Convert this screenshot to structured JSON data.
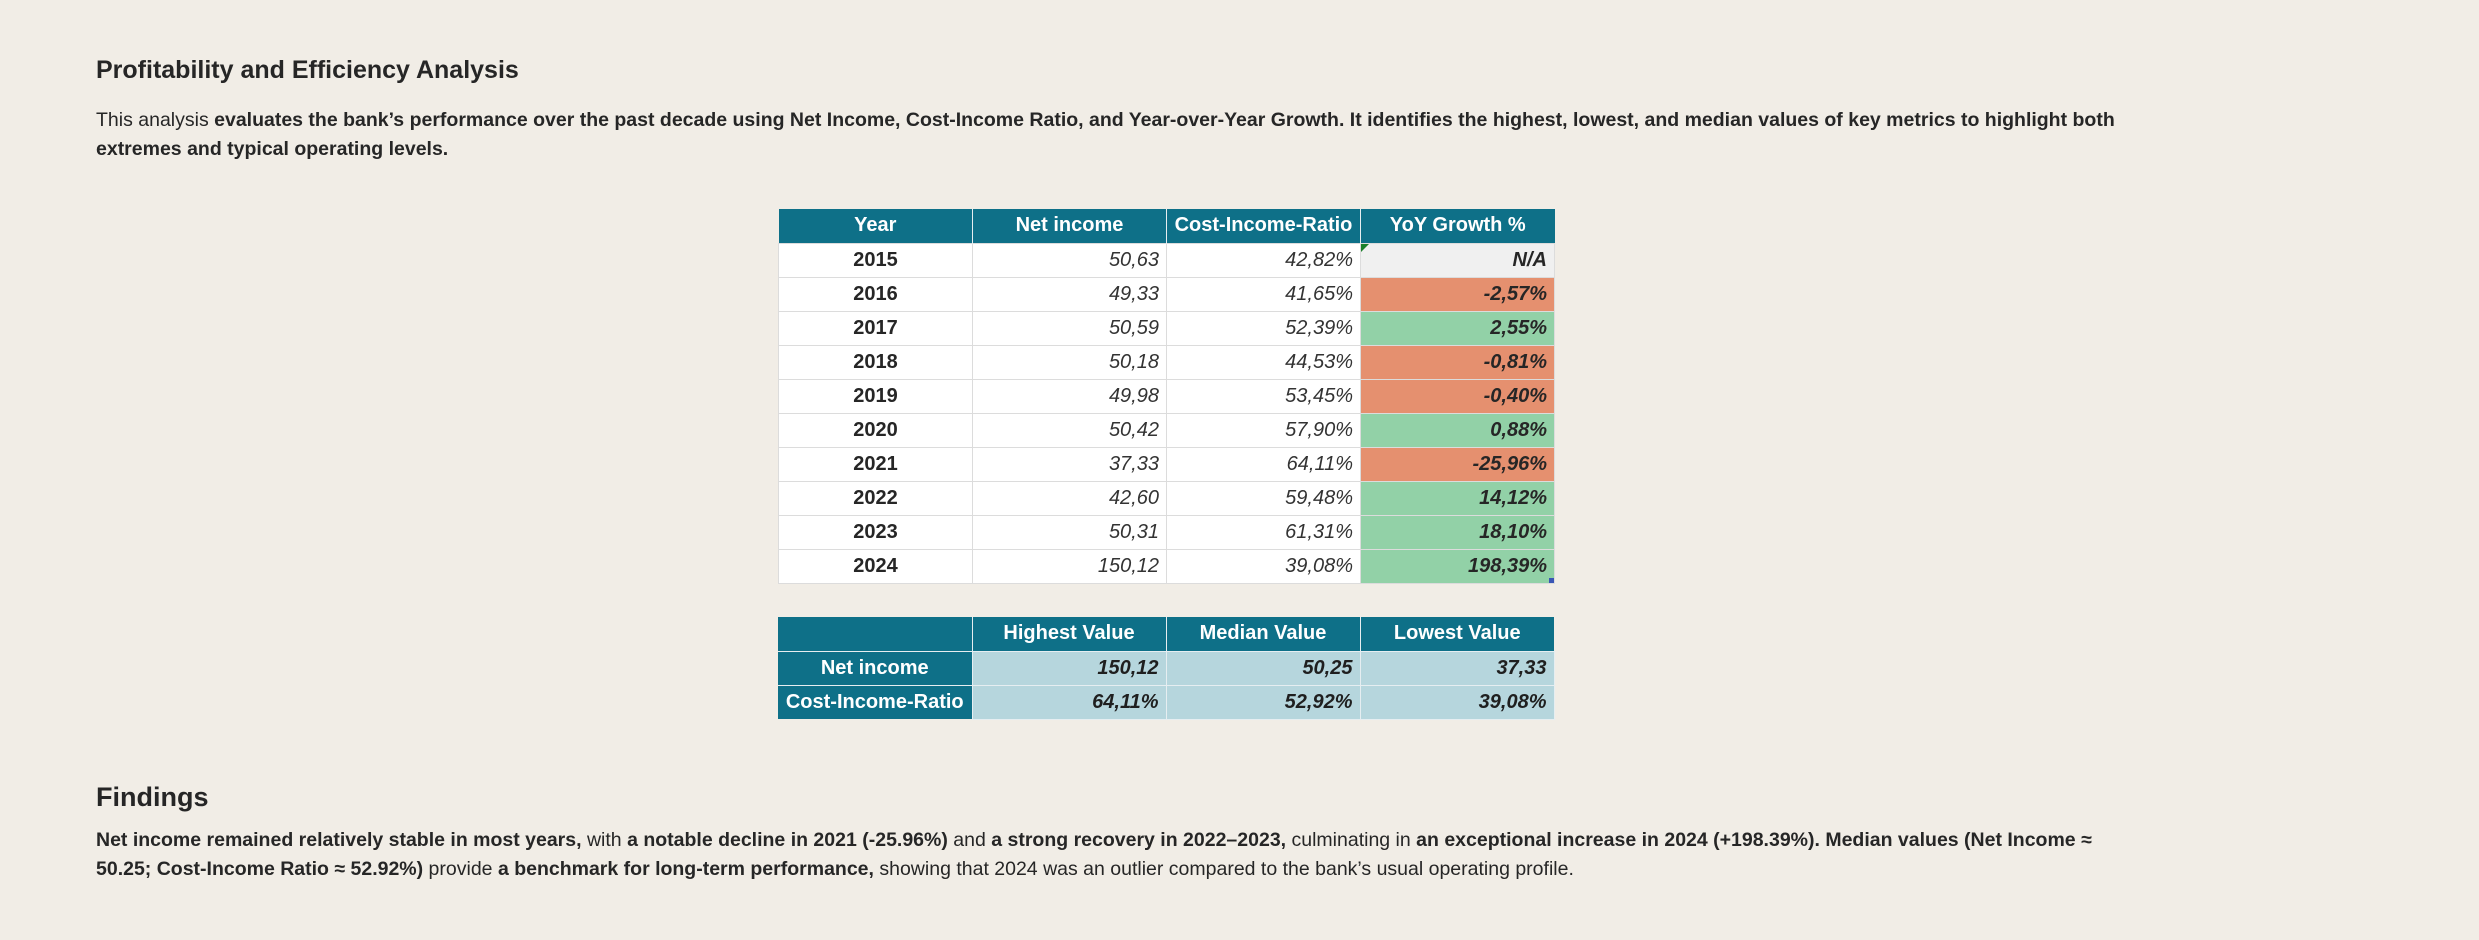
{
  "title": "Profitability and Efficiency Analysis",
  "intro": {
    "p1": "This analysis ",
    "b1": "evaluates the bank’s performance over the past decade using Net Income, Cost-Income Ratio, and Year-over-Year Growth. It identifies the highest, lowest, and median values of key metrics to highlight both extremes and typical operating levels."
  },
  "main_table": {
    "headers": [
      "Year",
      "Net income",
      "Cost-Income-Ratio",
      "YoY Growth %"
    ],
    "rows": [
      {
        "year": "2015",
        "net_income": "50,63",
        "cir": "42,82%",
        "yoy": "N/A"
      },
      {
        "year": "2016",
        "net_income": "49,33",
        "cir": "41,65%",
        "yoy": "-2,57%"
      },
      {
        "year": "2017",
        "net_income": "50,59",
        "cir": "52,39%",
        "yoy": "2,55%"
      },
      {
        "year": "2018",
        "net_income": "50,18",
        "cir": "44,53%",
        "yoy": "-0,81%"
      },
      {
        "year": "2019",
        "net_income": "49,98",
        "cir": "53,45%",
        "yoy": "-0,40%"
      },
      {
        "year": "2020",
        "net_income": "50,42",
        "cir": "57,90%",
        "yoy": "0,88%"
      },
      {
        "year": "2021",
        "net_income": "37,33",
        "cir": "64,11%",
        "yoy": "-25,96%"
      },
      {
        "year": "2022",
        "net_income": "42,60",
        "cir": "59,48%",
        "yoy": "14,12%"
      },
      {
        "year": "2023",
        "net_income": "50,31",
        "cir": "61,31%",
        "yoy": "18,10%"
      },
      {
        "year": "2024",
        "net_income": "150,12",
        "cir": "39,08%",
        "yoy": "198,39%"
      }
    ]
  },
  "summary_table": {
    "headers": [
      "",
      "Highest Value",
      "Median Value",
      "Lowest Value"
    ],
    "rows": [
      {
        "label": "Net income",
        "highest": "150,12",
        "median": "50,25",
        "lowest": "37,33"
      },
      {
        "label": "Cost-Income-Ratio",
        "highest": "64,11%",
        "median": "52,92%",
        "lowest": "39,08%"
      }
    ]
  },
  "findings": {
    "title": "Findings",
    "b1": "Net income remained relatively stable in most years,",
    "t1": " with ",
    "b2": "a notable decline in 2021 (-25.96%)",
    "t2": " and ",
    "b3": "a strong recovery in 2022–2023,",
    "t3": " culminating in ",
    "b4": "an exceptional increase in 2024 (+198.39%). Median values (Net Income ≈ 50.25; Cost-Income Ratio ≈ 52.92%)",
    "t4": " provide ",
    "b5": "a benchmark for long-term performance,",
    "t5": " showing that 2024 was an outlier compared to the bank’s usual operating profile."
  },
  "colors": {
    "header_bg": "#0e7088",
    "negative_fill": "#e5906f",
    "positive_fill": "#92d1a7",
    "summary_fill": "#b6d6dd",
    "page_bg": "#f1ede6"
  }
}
